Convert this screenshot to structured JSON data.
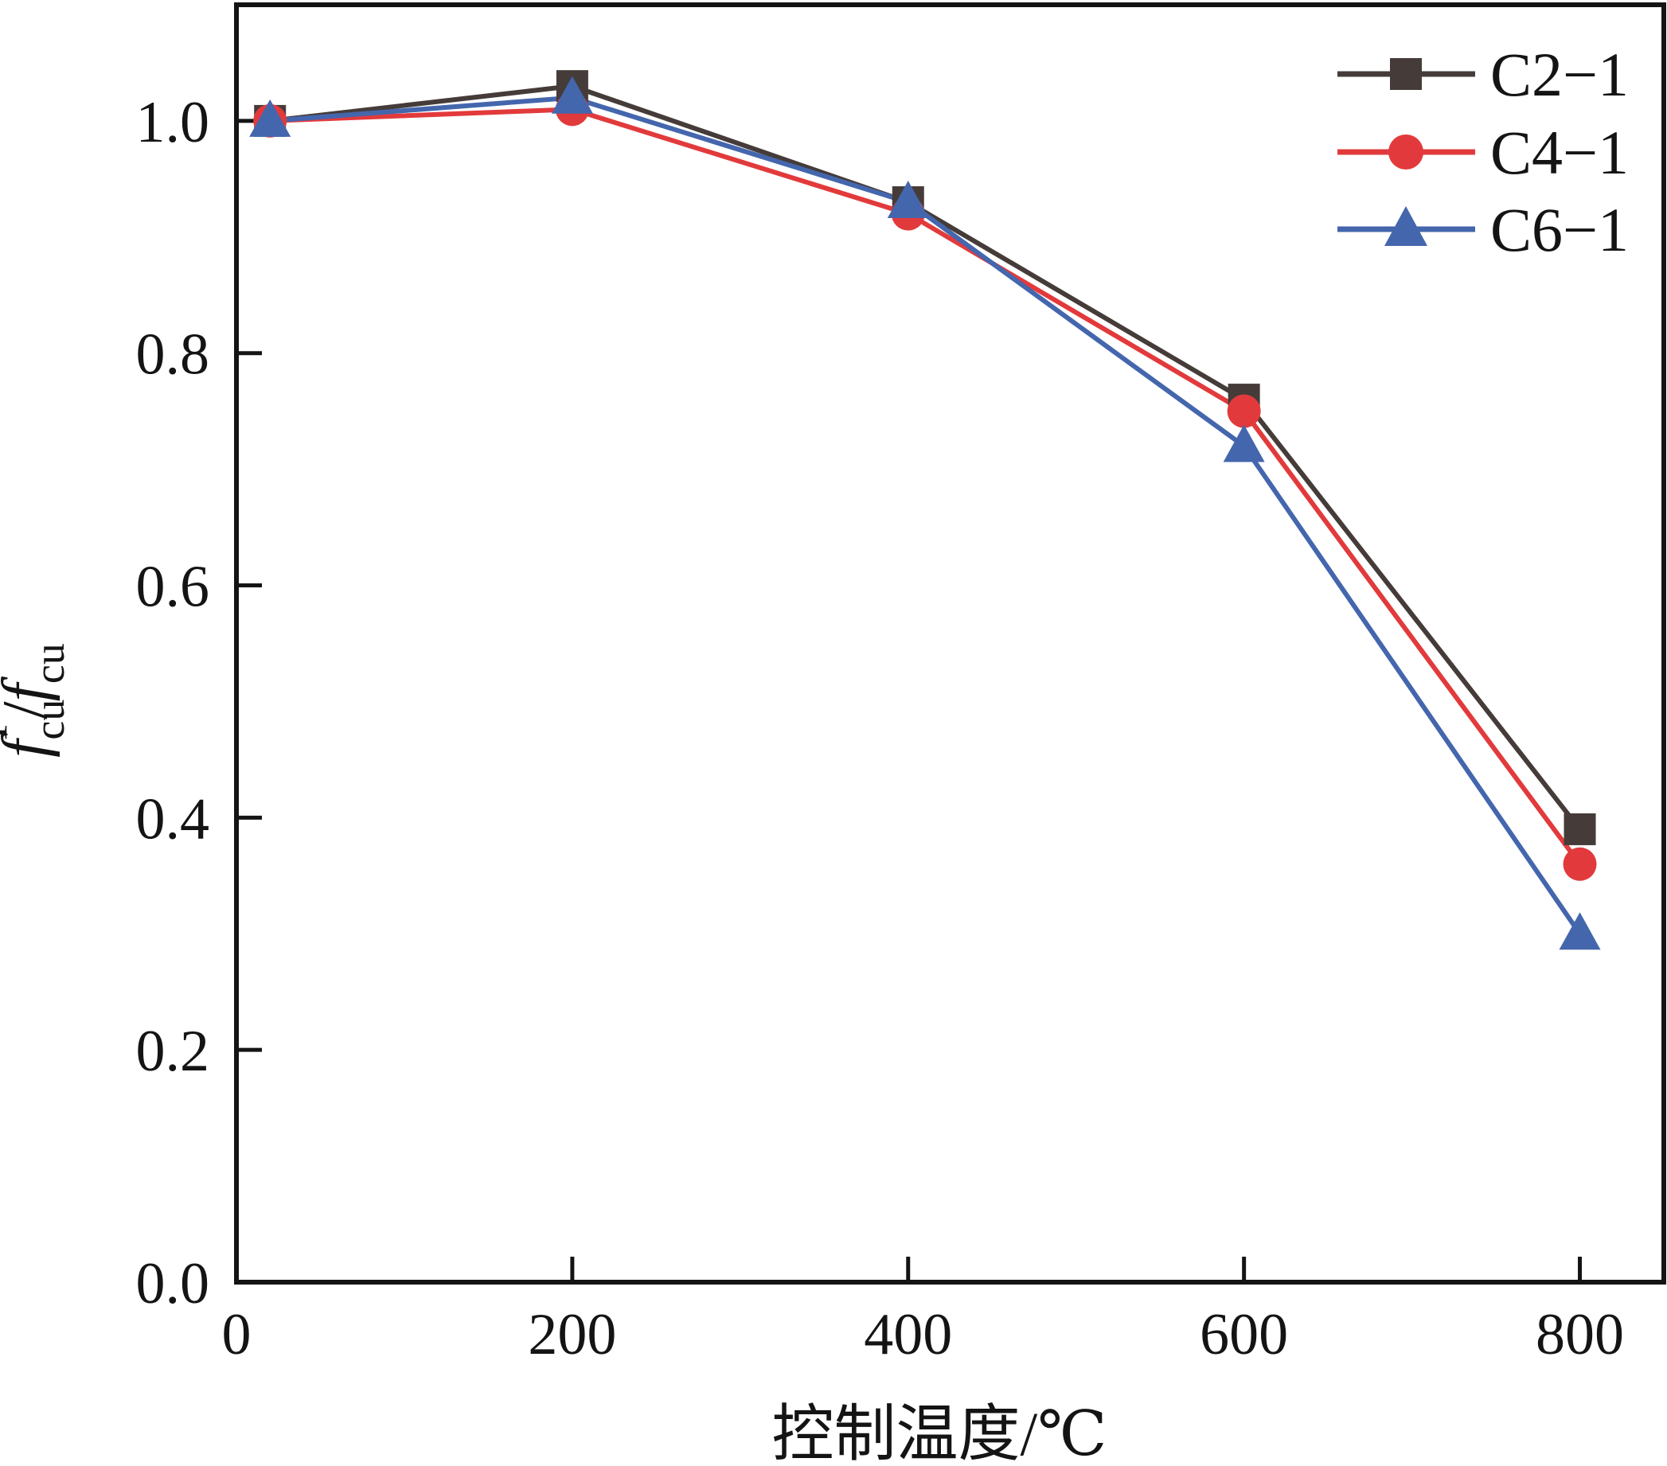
{
  "chart_data": {
    "type": "line",
    "title": "",
    "xlabel": "控制温度/℃",
    "ylabel": "f_cu^T/f_cu",
    "ylabel_parts": {
      "f1": "f",
      "sub1": "cu",
      "sup1": "T",
      "slash": "/",
      "f2": "f",
      "sub2": "cu"
    },
    "x": [
      20,
      200,
      400,
      600,
      800
    ],
    "x_tick_values": [
      0,
      200,
      400,
      600,
      800
    ],
    "x_tick_labels": [
      "0",
      "200",
      "400",
      "600",
      "800"
    ],
    "y_tick_values": [
      0,
      0.2,
      0.4,
      0.6,
      0.8,
      1.0
    ],
    "y_tick_labels": [
      "0.0",
      "0.2",
      "0.4",
      "0.6",
      "0.8",
      "1.0"
    ],
    "xlim": [
      0,
      850
    ],
    "ylim": [
      0,
      1.1
    ],
    "grid": false,
    "legend_position": "top-right",
    "frame": true,
    "axis_color": "#141414",
    "series": [
      {
        "name": "C2-1",
        "label": "C2−1",
        "color": "#453c39",
        "marker": "square",
        "values": [
          1.0,
          1.03,
          0.93,
          0.76,
          0.39
        ]
      },
      {
        "name": "C4-1",
        "label": "C4−1",
        "color": "#e23a3c",
        "marker": "circle",
        "values": [
          1.0,
          1.01,
          0.92,
          0.75,
          0.36
        ]
      },
      {
        "name": "C6-1",
        "label": "C6−1",
        "color": "#4466ad",
        "marker": "triangle",
        "values": [
          1.0,
          1.02,
          0.93,
          0.72,
          0.3
        ]
      }
    ]
  }
}
